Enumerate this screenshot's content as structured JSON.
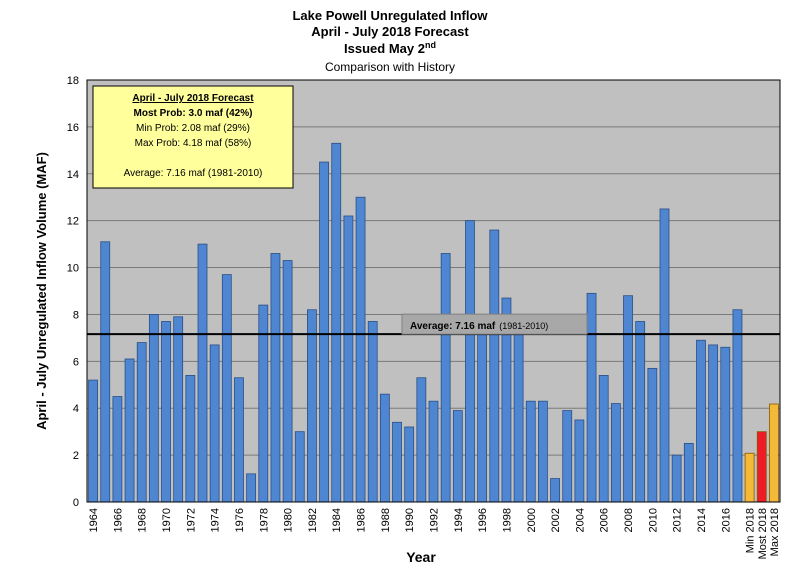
{
  "chart_data": {
    "type": "bar",
    "title_lines": [
      "Lake Powell Unregulated Inflow",
      "April - July 2018 Forecast"
    ],
    "issued": {
      "text": "Issued May 2",
      "sup": "nd"
    },
    "subtitle": "Comparison with History",
    "xlabel": "Year",
    "ylabel": "April - July Unregulated Inflow Volume (MAF)",
    "ylim": [
      0,
      18
    ],
    "yticks": [
      0,
      2,
      4,
      6,
      8,
      10,
      12,
      14,
      16,
      18
    ],
    "grid": true,
    "categories": [
      "1964",
      "1965",
      "1966",
      "1967",
      "1968",
      "1969",
      "1970",
      "1971",
      "1972",
      "1973",
      "1974",
      "1975",
      "1976",
      "1977",
      "1978",
      "1979",
      "1980",
      "1981",
      "1982",
      "1983",
      "1984",
      "1985",
      "1986",
      "1987",
      "1988",
      "1989",
      "1990",
      "1991",
      "1992",
      "1993",
      "1994",
      "1995",
      "1996",
      "1997",
      "1998",
      "1999",
      "2000",
      "2001",
      "2002",
      "2003",
      "2004",
      "2005",
      "2006",
      "2007",
      "2008",
      "2009",
      "2010",
      "2011",
      "2012",
      "2013",
      "2014",
      "2015",
      "2016",
      "2017"
    ],
    "values": [
      5.2,
      11.1,
      4.5,
      6.1,
      6.8,
      8.0,
      7.7,
      7.9,
      5.4,
      11.0,
      6.7,
      9.7,
      5.3,
      1.2,
      8.4,
      10.6,
      10.3,
      3.0,
      8.2,
      14.5,
      15.3,
      12.2,
      13.0,
      7.7,
      4.6,
      3.4,
      3.2,
      5.3,
      4.3,
      10.6,
      3.9,
      12.0,
      7.3,
      11.6,
      8.7,
      7.8,
      4.3,
      4.3,
      1.0,
      3.9,
      3.5,
      8.9,
      5.4,
      4.2,
      8.8,
      7.7,
      5.7,
      12.5,
      2.0,
      2.5,
      6.9,
      6.7,
      6.6,
      8.2
    ],
    "x_tick_labels": [
      "1964",
      "1966",
      "1968",
      "1970",
      "1972",
      "1974",
      "1976",
      "1978",
      "1980",
      "1982",
      "1984",
      "1986",
      "1988",
      "1990",
      "1992",
      "1994",
      "1996",
      "1998",
      "2000",
      "2002",
      "2004",
      "2006",
      "2008",
      "2010",
      "2012",
      "2014",
      "2016",
      "2018"
    ],
    "forecast": [
      {
        "label": "Min 2018",
        "value": 2.08,
        "color": "#f5b93a"
      },
      {
        "label": "Most 2018",
        "value": 3.0,
        "color": "#ee1c24"
      },
      {
        "label": "Max 2018",
        "value": 4.18,
        "color": "#f5b93a"
      }
    ],
    "average": {
      "value": 7.16,
      "label": "Average:  7.16 maf",
      "period": "(1981-2010)"
    },
    "forecast_box": {
      "heading": "April - July 2018 Forecast",
      "most": "Most Prob:  3.0 maf (42%)",
      "min": "Min Prob:  2.08 maf (29%)",
      "max": "Max Prob:  4.18 maf (58%)",
      "average": "Average:  7.16 maf  (1981-2010)"
    },
    "colors": {
      "bar": "#4f86d2",
      "bar_edge": "#2a4f86",
      "plot_bg": "#c0c0c0",
      "box_bg": "#ffff9c"
    }
  }
}
